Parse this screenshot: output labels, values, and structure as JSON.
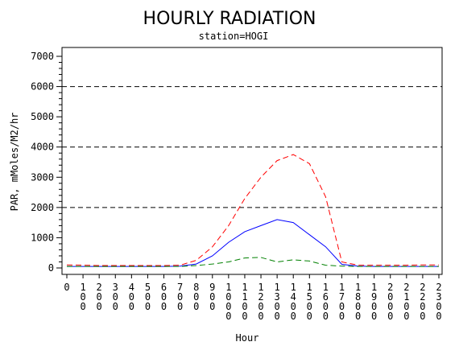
{
  "chart_data": {
    "type": "line",
    "title": "HOURLY RADIATION",
    "subtitle": "station=HOGI",
    "xlabel": "Hour",
    "ylabel": "PAR, mMoles/M2/hr",
    "ylim": [
      0,
      7000
    ],
    "yticks": [
      0,
      1000,
      2000,
      3000,
      4000,
      5000,
      6000,
      7000
    ],
    "xticks": [
      "0",
      "100",
      "200",
      "300",
      "400",
      "500",
      "600",
      "700",
      "800",
      "900",
      "1000",
      "1100",
      "1200",
      "1300",
      "1400",
      "1500",
      "1600",
      "1700",
      "1800",
      "1900",
      "2000",
      "2100",
      "2200",
      "2300"
    ],
    "reference_lines": [
      2000,
      4000,
      6000
    ],
    "x": [
      0,
      100,
      200,
      300,
      400,
      500,
      600,
      700,
      800,
      900,
      1000,
      1100,
      1200,
      1300,
      1400,
      1500,
      1600,
      1700,
      1800,
      1900,
      2000,
      2100,
      2200,
      2300
    ],
    "series": [
      {
        "color": "#ff0000",
        "dash": "dashed",
        "values": [
          100,
          90,
          80,
          80,
          80,
          80,
          80,
          90,
          250,
          700,
          1400,
          2300,
          3000,
          3550,
          3750,
          3450,
          2350,
          200,
          90,
          90,
          90,
          90,
          100,
          100
        ]
      },
      {
        "color": "#0000ff",
        "dash": "solid",
        "values": [
          50,
          50,
          50,
          50,
          50,
          50,
          50,
          60,
          130,
          400,
          850,
          1200,
          1400,
          1600,
          1500,
          1100,
          700,
          120,
          60,
          50,
          50,
          50,
          50,
          50
        ]
      },
      {
        "color": "#008000",
        "dash": "dashed",
        "values": [
          50,
          50,
          50,
          50,
          50,
          50,
          50,
          50,
          80,
          130,
          200,
          330,
          350,
          200,
          270,
          230,
          90,
          60,
          50,
          50,
          50,
          50,
          50,
          50
        ]
      }
    ]
  }
}
